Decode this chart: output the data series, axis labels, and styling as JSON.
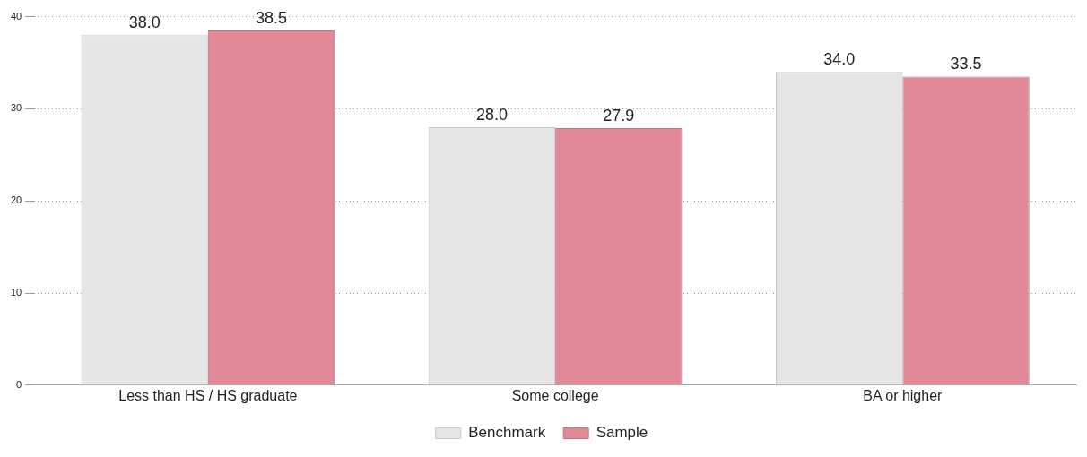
{
  "chart_data": {
    "type": "bar",
    "categories": [
      "Less than HS / HS graduate",
      "Some college",
      "BA or higher"
    ],
    "series": [
      {
        "name": "Benchmark",
        "color": "#e6e6e6",
        "values": [
          38.0,
          28.0,
          34.0
        ],
        "value_labels": [
          "38.0",
          "28.0",
          "34.0"
        ]
      },
      {
        "name": "Sample",
        "color": "#e38896",
        "values": [
          38.5,
          27.9,
          33.5
        ],
        "value_labels": [
          "38.5",
          "27.9",
          "33.5"
        ]
      }
    ],
    "ylim": [
      0,
      40
    ],
    "yticks": [
      0,
      10,
      20,
      30,
      40
    ],
    "grid": "y",
    "legend": "bottom"
  }
}
